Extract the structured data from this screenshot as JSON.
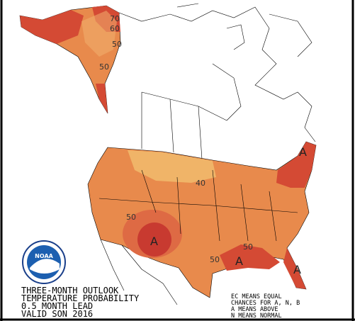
{
  "title_block": {
    "lines": [
      "THREE-MONTH OUTLOOK",
      "TEMPERATURE PROBABILITY",
      "0.5 MONTH LEAD",
      "VALID SON 2016"
    ]
  },
  "legend": {
    "lines": [
      "EC MEANS EQUAL",
      "CHANCES FOR A, N, B",
      "A MEANS ABOVE",
      "N MEANS NORMAL"
    ]
  },
  "logo": {
    "text": "NOAA"
  },
  "contour_labels": [
    {
      "text": "70"
    },
    {
      "text": "60"
    },
    {
      "text": "50"
    },
    {
      "text": "50"
    },
    {
      "text": "40"
    },
    {
      "text": "50"
    },
    {
      "text": "A"
    },
    {
      "text": "50"
    },
    {
      "text": "50"
    },
    {
      "text": "A"
    },
    {
      "text": "A"
    },
    {
      "text": "A"
    }
  ]
}
